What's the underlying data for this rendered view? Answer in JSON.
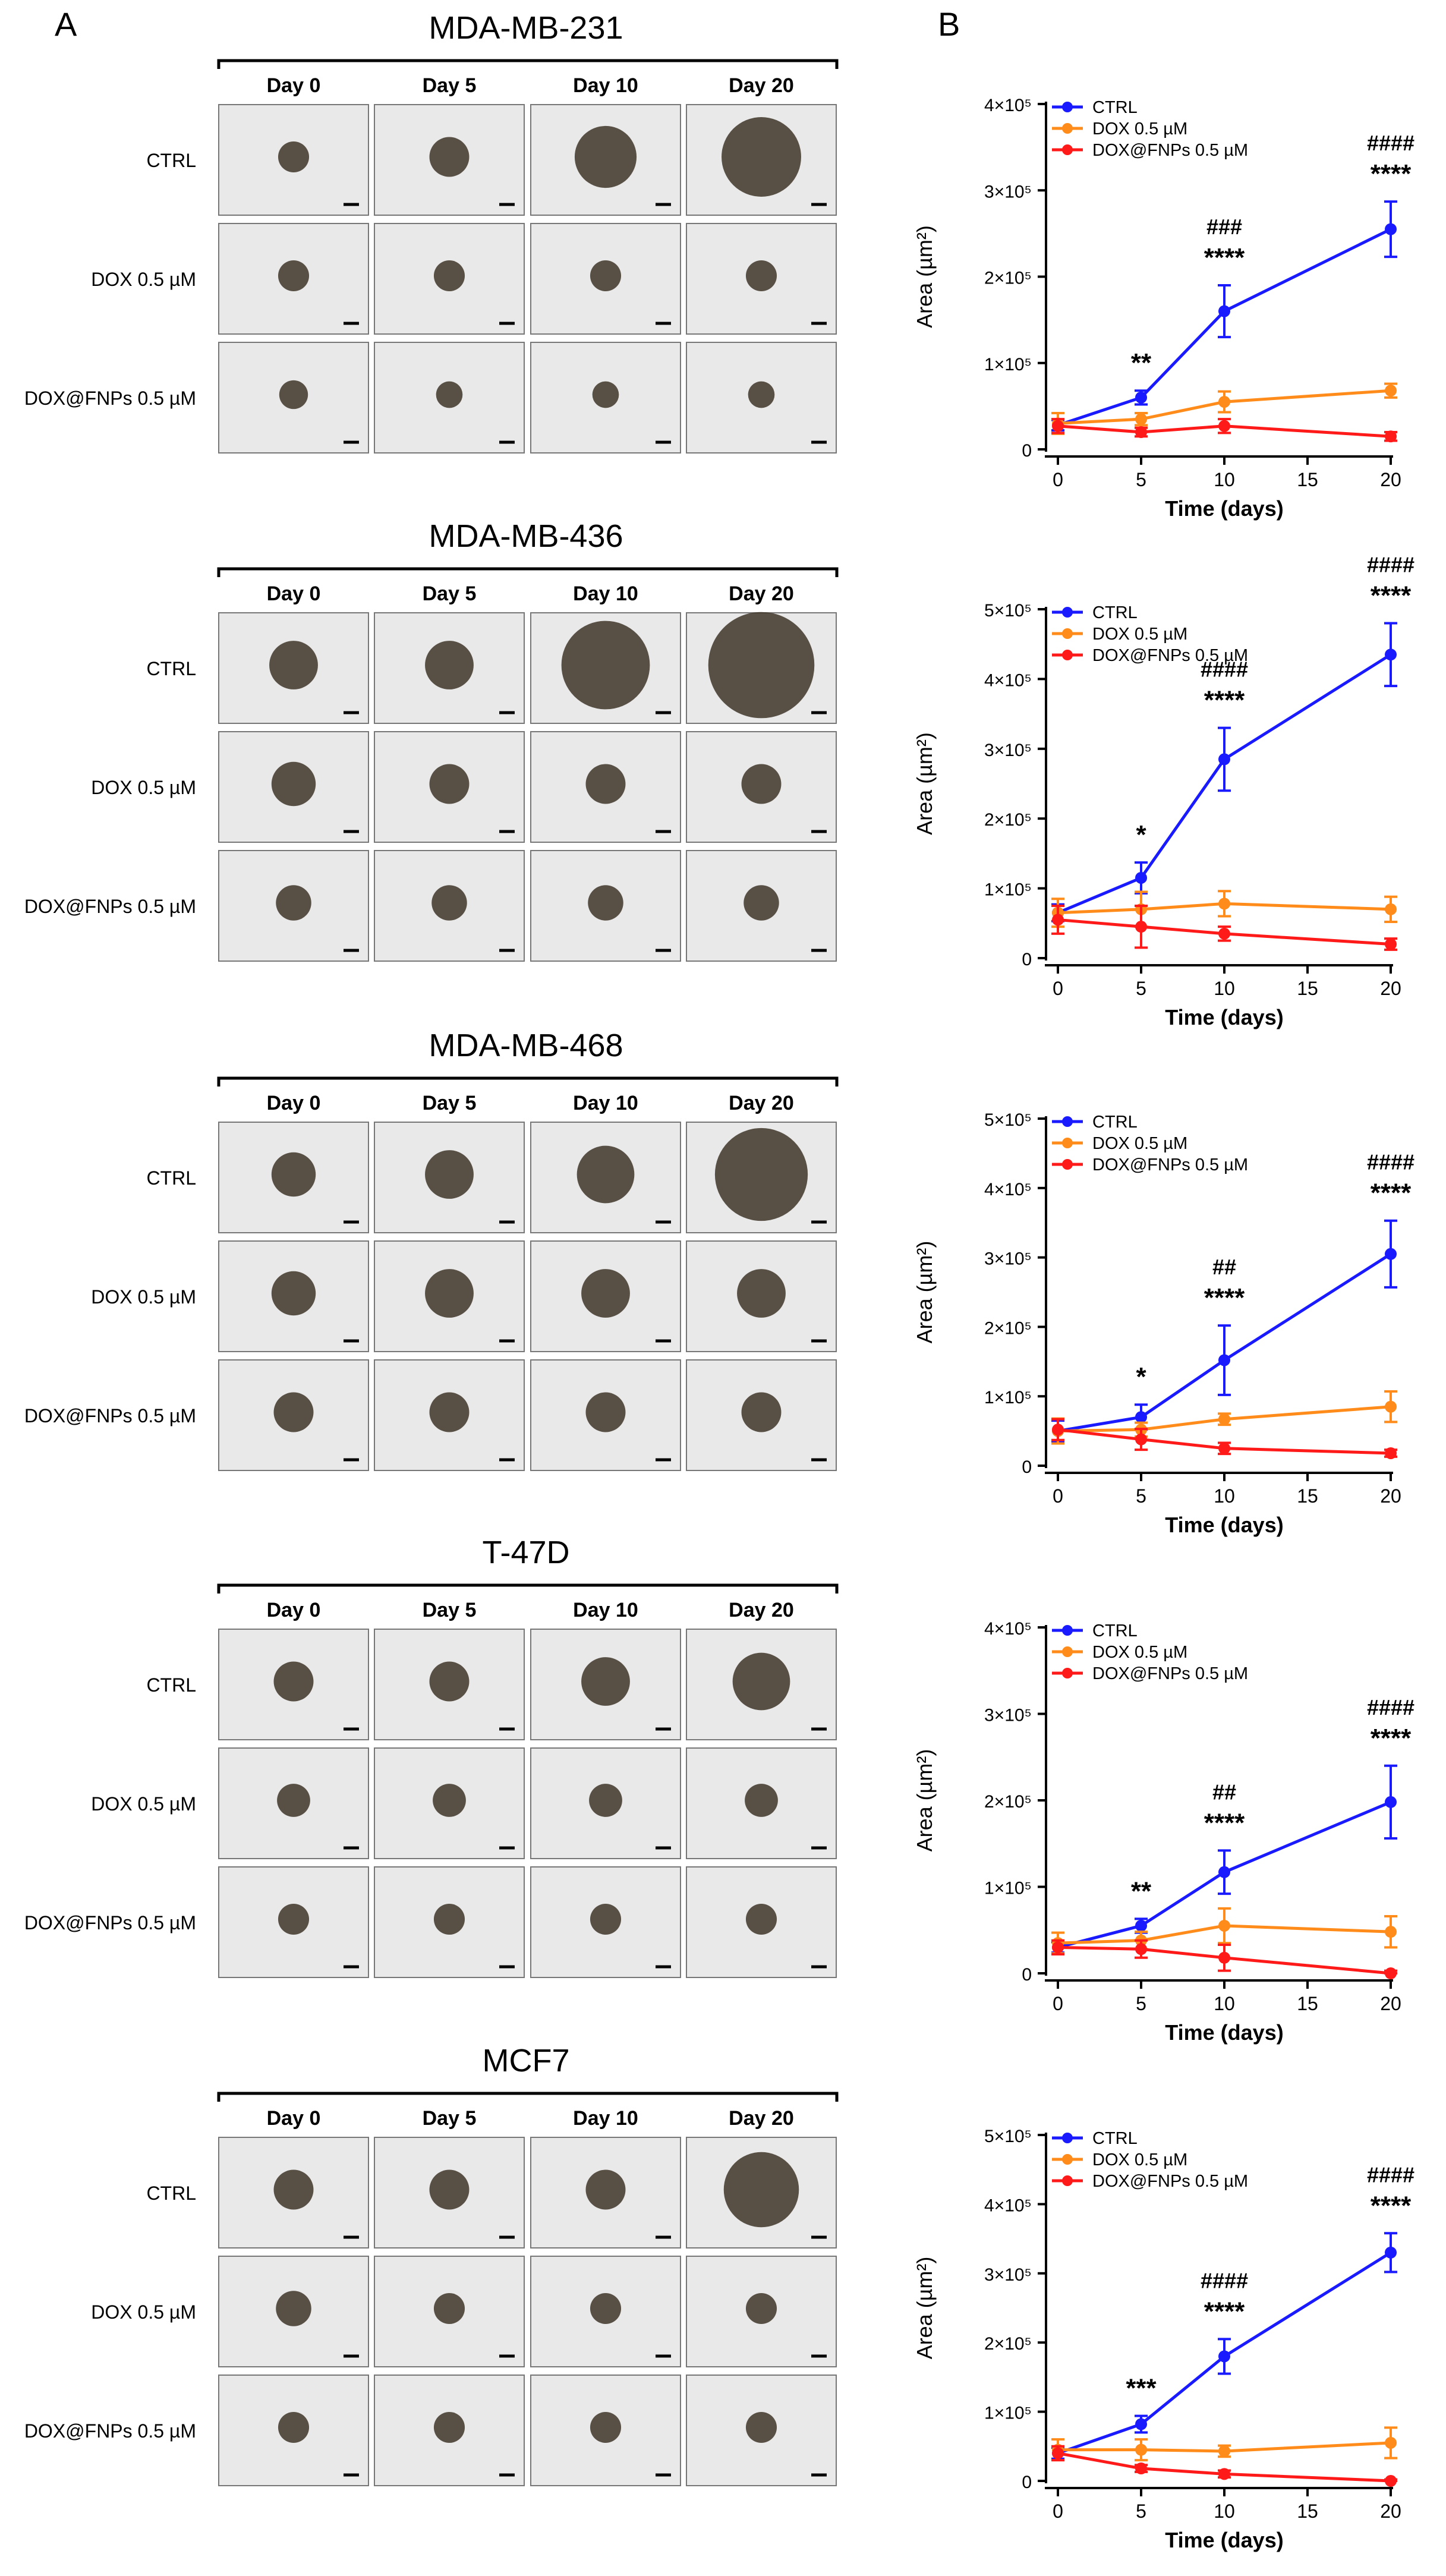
{
  "panel_labels": {
    "a": "A",
    "b": "B"
  },
  "day_labels": [
    "Day 0",
    "Day 5",
    "Day 10",
    "Day 20"
  ],
  "row_labels": [
    "CTRL",
    "DOX 0.5 µM",
    "DOX@FNPs 0.5 µM"
  ],
  "image_tone": {
    "bg": "#e9e9e9",
    "spheroid": "#3e3528",
    "border": "#777777"
  },
  "chart_data": [
    {
      "type": "line",
      "cell_line": "MDA-MB-231",
      "x": [
        0,
        5,
        10,
        20
      ],
      "xlabel": "Time (days)",
      "ylabel": "Area (µm²)",
      "xlim": [
        0,
        20
      ],
      "xticks": [
        0,
        5,
        10,
        15,
        20
      ],
      "ylim": [
        0,
        400000
      ],
      "yticks": [
        0,
        100000,
        200000,
        300000,
        400000
      ],
      "ytick_labels": [
        "0",
        "1×10⁵",
        "2×10⁵",
        "3×10⁵",
        "4×10⁵"
      ],
      "legend": "top-left",
      "series": [
        {
          "name": "CTRL",
          "color": "#1a1aff",
          "values": [
            28000,
            60000,
            160000,
            255000
          ],
          "errors": [
            6000,
            8000,
            30000,
            32000
          ]
        },
        {
          "name": "DOX 0.5 µM",
          "color": "#ff8c1a",
          "values": [
            30000,
            35000,
            55000,
            68000
          ],
          "errors": [
            12000,
            7000,
            12000,
            8000
          ]
        },
        {
          "name": "DOX@FNPs 0.5 µM",
          "color": "#ff1a1a",
          "values": [
            27000,
            20000,
            27000,
            15000
          ],
          "errors": [
            8000,
            5000,
            8000,
            5000
          ]
        }
      ],
      "annotations": [
        {
          "x": 5,
          "stars": "**",
          "hashes": ""
        },
        {
          "x": 10,
          "stars": "****",
          "hashes": "###"
        },
        {
          "x": 20,
          "stars": "****",
          "hashes": "####"
        }
      ]
    },
    {
      "type": "line",
      "cell_line": "MDA-MB-436",
      "x": [
        0,
        5,
        10,
        20
      ],
      "xlabel": "Time (days)",
      "ylabel": "Area (µm²)",
      "xlim": [
        0,
        20
      ],
      "xticks": [
        0,
        5,
        10,
        15,
        20
      ],
      "ylim": [
        0,
        500000
      ],
      "yticks": [
        0,
        100000,
        200000,
        300000,
        400000,
        500000
      ],
      "ytick_labels": [
        "0",
        "1×10⁵",
        "2×10⁵",
        "3×10⁵",
        "4×10⁵",
        "5×10⁵"
      ],
      "legend": "top-left",
      "series": [
        {
          "name": "CTRL",
          "color": "#1a1aff",
          "values": [
            65000,
            115000,
            285000,
            435000
          ],
          "errors": [
            12000,
            22000,
            45000,
            45000
          ]
        },
        {
          "name": "DOX 0.5 µM",
          "color": "#ff8c1a",
          "values": [
            65000,
            70000,
            78000,
            70000
          ],
          "errors": [
            20000,
            25000,
            18000,
            18000
          ]
        },
        {
          "name": "DOX@FNPs 0.5 µM",
          "color": "#ff1a1a",
          "values": [
            55000,
            45000,
            35000,
            20000
          ],
          "errors": [
            20000,
            30000,
            10000,
            8000
          ]
        }
      ],
      "annotations": [
        {
          "x": 5,
          "stars": "*",
          "hashes": ""
        },
        {
          "x": 10,
          "stars": "****",
          "hashes": "####"
        },
        {
          "x": 20,
          "stars": "****",
          "hashes": "####"
        }
      ]
    },
    {
      "type": "line",
      "cell_line": "MDA-MB-468",
      "x": [
        0,
        5,
        10,
        20
      ],
      "xlabel": "Time (days)",
      "ylabel": "Area (µm²)",
      "xlim": [
        0,
        20
      ],
      "xticks": [
        0,
        5,
        10,
        15,
        20
      ],
      "ylim": [
        0,
        500000
      ],
      "yticks": [
        0,
        100000,
        200000,
        300000,
        400000,
        500000
      ],
      "ytick_labels": [
        "0",
        "1×10⁵",
        "2×10⁵",
        "3×10⁵",
        "4×10⁵",
        "5×10⁵"
      ],
      "legend": "top-left",
      "series": [
        {
          "name": "CTRL",
          "color": "#1a1aff",
          "values": [
            50000,
            70000,
            152000,
            305000
          ],
          "errors": [
            15000,
            18000,
            50000,
            48000
          ]
        },
        {
          "name": "DOX 0.5 µM",
          "color": "#ff8c1a",
          "values": [
            50000,
            52000,
            67000,
            85000
          ],
          "errors": [
            18000,
            10000,
            8000,
            22000
          ]
        },
        {
          "name": "DOX@FNPs 0.5 µM",
          "color": "#ff1a1a",
          "values": [
            52000,
            38000,
            25000,
            18000
          ],
          "errors": [
            15000,
            15000,
            8000,
            5000
          ]
        }
      ],
      "annotations": [
        {
          "x": 5,
          "stars": "*",
          "hashes": ""
        },
        {
          "x": 10,
          "stars": "****",
          "hashes": "##"
        },
        {
          "x": 20,
          "stars": "****",
          "hashes": "####"
        }
      ]
    },
    {
      "type": "line",
      "cell_line": "T-47D",
      "x": [
        0,
        5,
        10,
        20
      ],
      "xlabel": "Time (days)",
      "ylabel": "Area (µm²)",
      "xlim": [
        0,
        20
      ],
      "xticks": [
        0,
        5,
        10,
        15,
        20
      ],
      "ylim": [
        0,
        400000
      ],
      "yticks": [
        0,
        100000,
        200000,
        300000,
        400000
      ],
      "ytick_labels": [
        "0",
        "1×10⁵",
        "2×10⁵",
        "3×10⁵",
        "4×10⁵"
      ],
      "legend": "top-left",
      "series": [
        {
          "name": "CTRL",
          "color": "#1a1aff",
          "values": [
            30000,
            55000,
            117000,
            198000
          ],
          "errors": [
            6000,
            8000,
            25000,
            42000
          ]
        },
        {
          "name": "DOX 0.5 µM",
          "color": "#ff8c1a",
          "values": [
            35000,
            38000,
            55000,
            48000
          ],
          "errors": [
            12000,
            10000,
            20000,
            18000
          ]
        },
        {
          "name": "DOX@FNPs 0.5 µM",
          "color": "#ff1a1a",
          "values": [
            30000,
            28000,
            18000,
            0
          ],
          "errors": [
            8000,
            10000,
            15000,
            3000
          ]
        }
      ],
      "annotations": [
        {
          "x": 5,
          "stars": "**",
          "hashes": ""
        },
        {
          "x": 10,
          "stars": "****",
          "hashes": "##"
        },
        {
          "x": 20,
          "stars": "****",
          "hashes": "####"
        }
      ]
    },
    {
      "type": "line",
      "cell_line": "MCF7",
      "x": [
        0,
        5,
        10,
        20
      ],
      "xlabel": "Time (days)",
      "ylabel": "Area (µm²)",
      "xlim": [
        0,
        20
      ],
      "xticks": [
        0,
        5,
        10,
        15,
        20
      ],
      "ylim": [
        0,
        500000
      ],
      "yticks": [
        0,
        100000,
        200000,
        300000,
        400000,
        500000
      ],
      "ytick_labels": [
        "0",
        "1×10⁵",
        "2×10⁵",
        "3×10⁵",
        "4×10⁵",
        "5×10⁵"
      ],
      "legend": "top-left",
      "series": [
        {
          "name": "CTRL",
          "color": "#1a1aff",
          "values": [
            40000,
            82000,
            180000,
            330000
          ],
          "errors": [
            8000,
            12000,
            25000,
            28000
          ]
        },
        {
          "name": "DOX 0.5 µM",
          "color": "#ff8c1a",
          "values": [
            45000,
            45000,
            43000,
            55000
          ],
          "errors": [
            15000,
            15000,
            8000,
            22000
          ]
        },
        {
          "name": "DOX@FNPs 0.5 µM",
          "color": "#ff1a1a",
          "values": [
            40000,
            18000,
            10000,
            0
          ],
          "errors": [
            10000,
            5000,
            5000,
            2000
          ]
        }
      ],
      "annotations": [
        {
          "x": 5,
          "stars": "***",
          "hashes": ""
        },
        {
          "x": 10,
          "stars": "****",
          "hashes": "####"
        },
        {
          "x": 20,
          "stars": "****",
          "hashes": "####"
        }
      ]
    }
  ]
}
